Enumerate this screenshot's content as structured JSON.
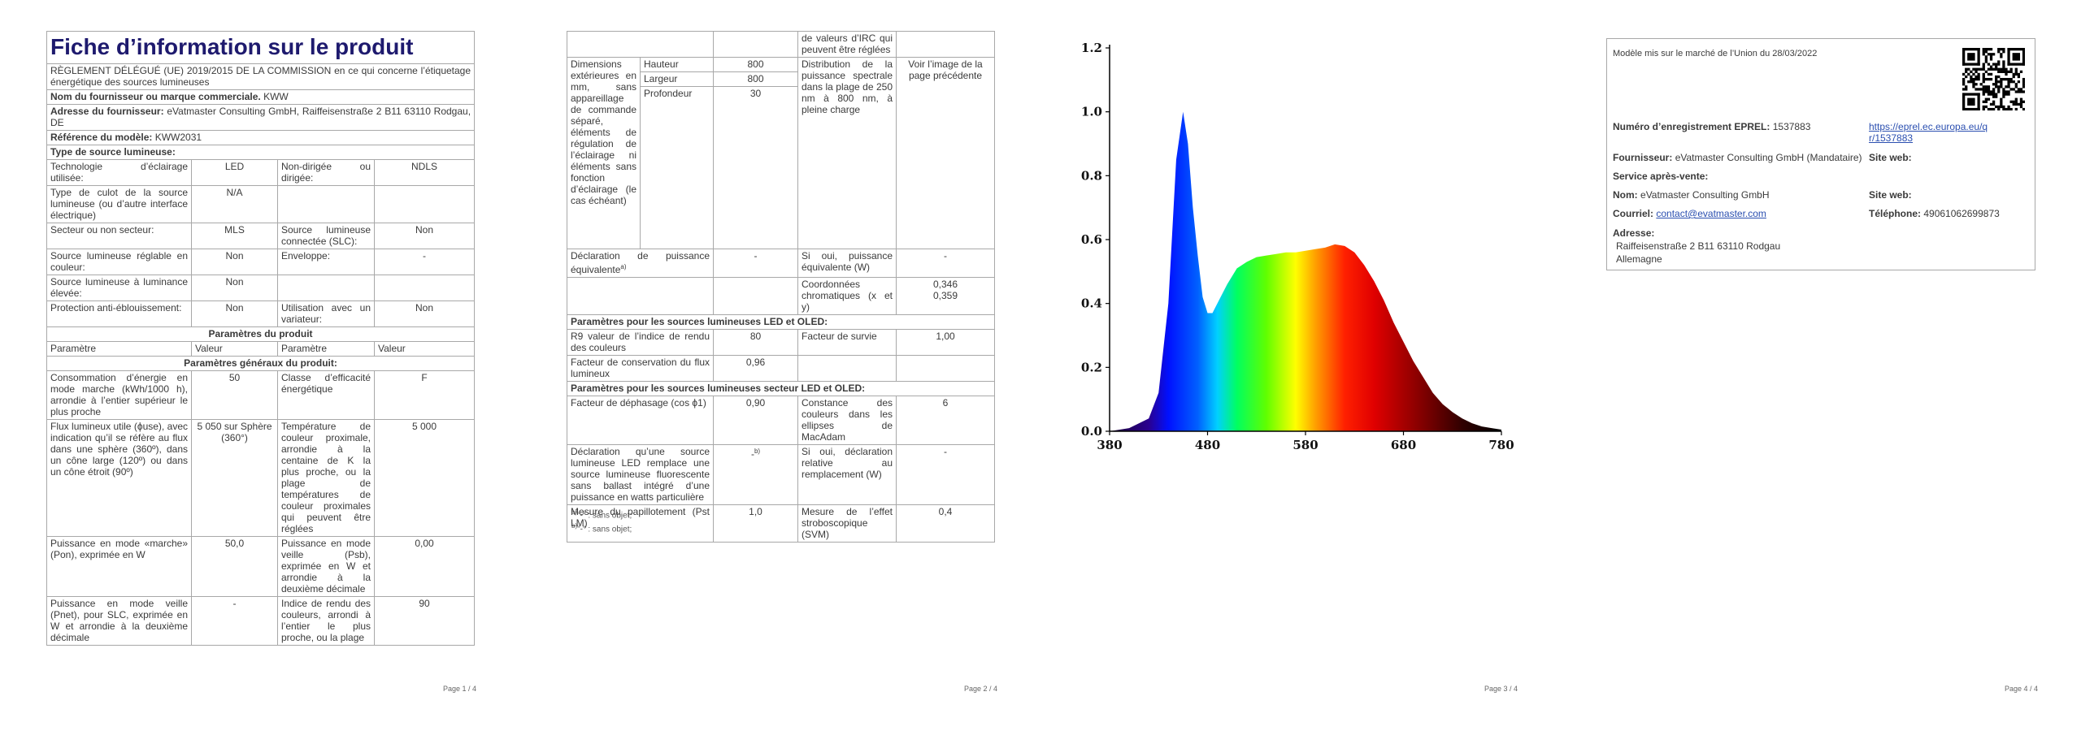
{
  "page1": {
    "title": "Fiche d’information sur le produit",
    "regulation": "RÈGLEMENT DÉLÉGUÉ (UE) 2019/2015 DE LA COMMISSION en ce qui concerne l’étiquetage énergétique des sources lumineuses",
    "supplier": {
      "label": "Nom du fournisseur ou marque commerciale.",
      "value": "KWW"
    },
    "address": {
      "label": "Adresse du fournisseur:",
      "value": "eVatmaster Consulting GmbH, Raiffeisenstraße 2 B11 63110 Rodgau, DE"
    },
    "model": {
      "label": "Référence du modèle:",
      "value": "KWW2031"
    },
    "source_type": "Type de source lumineuse:",
    "light_rows": [
      [
        "Technologie d’éclairage utilisée:",
        "LED",
        "Non-dirigée ou dirigée:",
        "NDLS"
      ],
      [
        "Type de culot de la source lumineuse (ou d’autre interface électrique)",
        "N/A"
      ],
      [
        "Secteur ou non secteur:",
        "MLS",
        "Source lumineuse connectée (SLC):",
        "Non"
      ],
      [
        "Source lumineuse réglable en couleur:",
        "Non",
        "Enveloppe:",
        "-"
      ],
      [
        "Source lumineuse à luminance élevée:",
        "Non"
      ],
      [
        "Protection anti-éblouissement:",
        "Non",
        "Utilisation avec un variateur:",
        "Non"
      ]
    ],
    "params_title": "Paramètres du produit",
    "header": [
      "Paramètre",
      "Valeur",
      "Paramètre",
      "Valeur"
    ],
    "general_title": "Paramètres généraux du produit:",
    "general_rows": [
      [
        "Consommation d’énergie en mode marche (kWh/1000 h), arrondie à l’entier supérieur le plus proche",
        "50",
        "Classe d’efficacité énergétique",
        "F"
      ],
      [
        "Flux lumineux utile (ϕuse), avec indication qu’il se réfère au flux dans une sphère (360º), dans un cône large (120º) ou dans un cône étroit (90º)",
        "5 050 sur Sphère (360°)",
        "Température de couleur proximale, arrondie à la centaine de K la plus proche, ou la plage de températures de couleur proximales qui peuvent être réglées",
        "5 000"
      ],
      [
        "Puissance en mode «marche» (Pon), exprimée en W",
        "50,0",
        "Puissance en mode veille (Psb), exprimée en W et arrondie à la deuxième décimale",
        "0,00"
      ],
      [
        "Puissance en mode veille (Pnet), pour SLC, exprimée en W et arrondie à la deuxième décimale",
        "-",
        "Indice de rendu des couleurs, arrondi à l’entier le plus proche, ou la plage",
        "90"
      ]
    ],
    "footer": "Page 1 / 4"
  },
  "page2": {
    "continuation": "de valeurs d’IRC qui peuvent être réglées",
    "dimensions": {
      "label": "Dimensions extérieures en mm, sans appareillage de commande séparé, éléments de régulation de l’éclairage ni éléments sans fonction d’éclairage (le cas échéant)",
      "items": [
        {
          "name": "Hauteur",
          "value": "800"
        },
        {
          "name": "Largeur",
          "value": "800"
        },
        {
          "name": "Profondeur",
          "value": "30"
        }
      ],
      "spectral_label": "Distribution de la puissance spectrale dans la plage de 250 nm à 800 nm, à pleine charge",
      "spectral_value": "Voir l’image de la page précédente"
    },
    "equivalent": {
      "label": "Déclaration de puissance équivalente",
      "note": "a)",
      "value": "-",
      "label2": "Si oui, puissance équivalente (W)",
      "value2": "-"
    },
    "chromaticity": {
      "label": "Coordonnées chromatiques (x et y)",
      "x": "0,346",
      "y": "0,359"
    },
    "led_title": "Paramètres pour les sources lumineuses LED et OLED:",
    "led_rows": [
      [
        "R9 valeur de l’indice de rendu des couleurs",
        "80",
        "Facteur de survie",
        "1,00"
      ],
      [
        "Facteur de conservation du flux lumineux",
        "0,96"
      ]
    ],
    "mains_title": "Paramètres pour les sources lumineuses secteur LED et OLED:",
    "mains_rows": [
      {
        "label": "Facteur de déphasage (cos ϕ1)",
        "value": "0,90",
        "label2": "Constance des couleurs dans les ellipses de MacAdam",
        "value2": "6"
      },
      {
        "label": "Déclaration qu’une source lumineuse LED remplace une source lumineuse fluorescente sans ballast intégré d’une puissance en watts particulière",
        "value": "-",
        "note": "b)",
        "label2": "Si oui, déclaration relative au remplacement (W)",
        "value2": "-"
      },
      {
        "label": "Mesure du papillotement (Pst LM)",
        "value": "1,0",
        "label2": "Mesure de l’effet stroboscopique (SVM)",
        "value2": "0,4"
      }
    ],
    "notes": [
      {
        "mark": "a)",
        "text": "\"-\" : sans objet;"
      },
      {
        "mark": "b)",
        "text": "\"-\" : sans objet;"
      }
    ],
    "footer": "Page 2 / 4"
  },
  "chart_data": {
    "type": "area",
    "x": [
      380,
      400,
      420,
      430,
      440,
      448,
      455,
      460,
      465,
      470,
      475,
      480,
      485,
      490,
      500,
      510,
      520,
      530,
      540,
      550,
      560,
      570,
      580,
      590,
      600,
      610,
      620,
      630,
      640,
      650,
      660,
      670,
      680,
      690,
      700,
      710,
      720,
      730,
      740,
      750,
      760,
      770,
      780
    ],
    "values": [
      0,
      0.01,
      0.04,
      0.12,
      0.4,
      0.85,
      1.0,
      0.9,
      0.7,
      0.55,
      0.42,
      0.37,
      0.37,
      0.4,
      0.46,
      0.51,
      0.53,
      0.545,
      0.55,
      0.555,
      0.56,
      0.56,
      0.565,
      0.57,
      0.575,
      0.585,
      0.58,
      0.56,
      0.52,
      0.47,
      0.41,
      0.34,
      0.28,
      0.22,
      0.17,
      0.12,
      0.085,
      0.06,
      0.04,
      0.025,
      0.015,
      0.01,
      0.005
    ],
    "xlim": [
      380,
      780
    ],
    "ylim": [
      0,
      1.2
    ],
    "xticks": [
      380,
      480,
      580,
      680,
      780
    ],
    "yticks": [
      {
        "value": 0,
        "label": "0.0"
      },
      0.2,
      0.4,
      0.6,
      0.8,
      {
        "value": 1,
        "label": "1.0"
      },
      1.2
    ],
    "footer": "Page 3 / 4"
  },
  "page4": {
    "market": "Modèle mis sur le marché de l’Union du 28/03/2022",
    "eprel": {
      "label": "Numéro d’enregistrement EPREL:",
      "value": "1537883",
      "link": "https://eprel.ec.europa.eu/qr/1537883"
    },
    "supplier": {
      "label": "Fournisseur:",
      "value": "eVatmaster Consulting GmbH (Mandataire)",
      "web": "Site web:"
    },
    "service": "Service après-vente:",
    "name": {
      "label": "Nom:",
      "value": "eVatmaster Consulting GmbH",
      "web": "Site web:"
    },
    "email": {
      "label": "Courriel:",
      "value": "contact@evatmaster.com",
      "phone_label": "Téléphone:",
      "phone": "49061062699873"
    },
    "address": {
      "label": "Adresse:",
      "line1": "Raiffeisenstraße 2 B11 63110 Rodgau",
      "line2": "Allemagne"
    },
    "footer": "Page 4 / 4"
  }
}
